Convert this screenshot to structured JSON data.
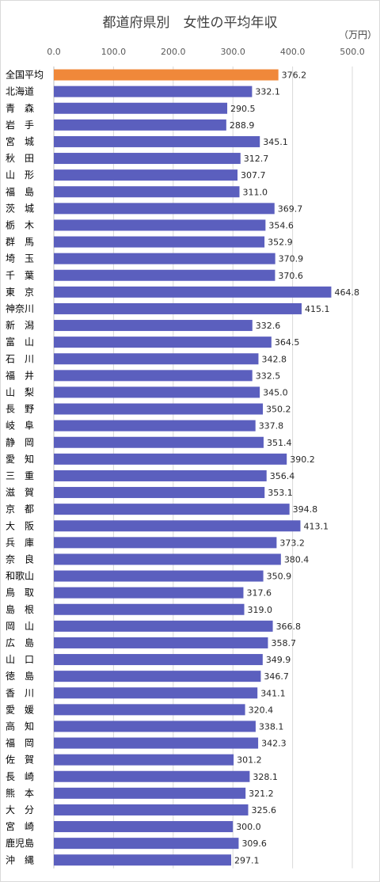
{
  "chart_data": {
    "type": "bar",
    "orientation": "horizontal",
    "title": "都道府県別　女性の平均年収",
    "unit_label": "（万円）",
    "xlim": [
      0,
      500
    ],
    "ticks": [
      "0.0",
      "100.0",
      "200.0",
      "300.0",
      "400.0",
      "500.0"
    ],
    "tick_values": [
      0,
      100,
      200,
      300,
      400,
      500
    ],
    "grid": true,
    "colors": {
      "highlight": "#F0883A",
      "bar": "#5B5FBE"
    },
    "highlight_index": 0,
    "categories": [
      "全国平均",
      "北海道",
      "青　森",
      "岩　手",
      "宮　城",
      "秋　田",
      "山　形",
      "福　島",
      "茨　城",
      "栃　木",
      "群　馬",
      "埼　玉",
      "千　葉",
      "東　京",
      "神奈川",
      "新　潟",
      "富　山",
      "石　川",
      "福　井",
      "山　梨",
      "長　野",
      "岐　阜",
      "静　岡",
      "愛　知",
      "三　重",
      "滋　賀",
      "京　都",
      "大　阪",
      "兵　庫",
      "奈　良",
      "和歌山",
      "鳥　取",
      "島　根",
      "岡　山",
      "広　島",
      "山　口",
      "徳　島",
      "香　川",
      "愛　媛",
      "高　知",
      "福　岡",
      "佐　賀",
      "長　崎",
      "熊　本",
      "大　分",
      "宮　崎",
      "鹿児島",
      "沖　縄"
    ],
    "values": [
      376.2,
      332.1,
      290.5,
      288.9,
      345.1,
      312.7,
      307.7,
      311.0,
      369.7,
      354.6,
      352.9,
      370.9,
      370.6,
      464.8,
      415.1,
      332.6,
      364.5,
      342.8,
      332.5,
      345.0,
      350.2,
      337.8,
      351.4,
      390.2,
      356.4,
      353.1,
      394.8,
      413.1,
      373.2,
      380.4,
      350.9,
      317.6,
      319.0,
      366.8,
      358.7,
      349.9,
      346.7,
      341.1,
      320.4,
      338.1,
      342.3,
      301.2,
      328.1,
      321.2,
      325.6,
      300.0,
      309.6,
      297.1
    ],
    "value_labels": [
      "376.2",
      "332.1",
      "290.5",
      "288.9",
      "345.1",
      "312.7",
      "307.7",
      "311.0",
      "369.7",
      "354.6",
      "352.9",
      "370.9",
      "370.6",
      "464.8",
      "415.1",
      "332.6",
      "364.5",
      "342.8",
      "332.5",
      "345.0",
      "350.2",
      "337.8",
      "351.4",
      "390.2",
      "356.4",
      "353.1",
      "394.8",
      "413.1",
      "373.2",
      "380.4",
      "350.9",
      "317.6",
      "319.0",
      "366.8",
      "358.7",
      "349.9",
      "346.7",
      "341.1",
      "320.4",
      "338.1",
      "342.3",
      "301.2",
      "328.1",
      "321.2",
      "325.6",
      "300.0",
      "309.6",
      "297.1"
    ]
  }
}
